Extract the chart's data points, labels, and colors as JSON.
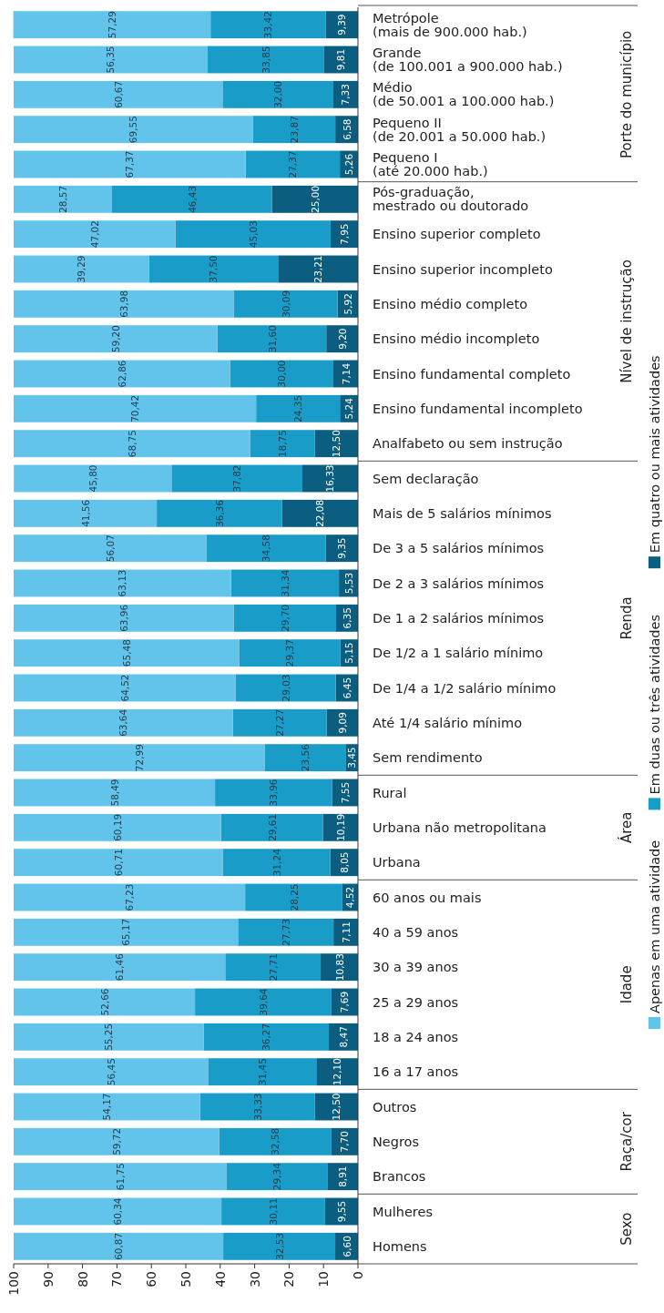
{
  "chart_data": {
    "type": "bar",
    "orientation": "horizontal",
    "stacked": true,
    "categories": [
      "Metrópole\n(mais de 900.000 hab.)",
      "Grande\n(de 100.001 a 900.000 hab.)",
      "Médio\n(de 50.001 a 100.000 hab.)",
      "Pequeno II\n(de 20.001 a 50.000 hab.)",
      "Pequeno I\n(até 20.000 hab.)",
      "Pós-graduação,\nmestrado ou doutorado",
      "Ensino superior completo",
      "Ensino superior incompleto",
      "Ensino médio completo",
      "Ensino médio incompleto",
      "Ensino fundamental completo",
      "Ensino fundamental incompleto",
      "Analfabeto ou sem instrução",
      "Sem declaração",
      "Mais de 5 salários mínimos",
      "De 3 a 5 salários mínimos",
      "De 2 a 3 salários mínimos",
      "De 1 a 2 salários mínimos",
      "De 1/2 a 1 salário mínimo",
      "De 1/4 a 1/2 salário mínimo",
      "Até 1/4 salário mínimo",
      "Sem rendimento",
      "Rural",
      "Urbana não metropolitana",
      "Urbana",
      "60 anos ou mais",
      "40 a 59 anos",
      "30 a 39 anos",
      "25 a 29 anos",
      "18 a 24 anos",
      "16 a 17 anos",
      "Outros",
      "Negros",
      "Brancos",
      "Mulheres",
      "Homens"
    ],
    "series": [
      {
        "name": "Em quatro ou mais atividades",
        "color": "#0b5e80",
        "values": [
          9.39,
          9.81,
          7.33,
          6.58,
          5.26,
          25.0,
          7.95,
          23.21,
          5.92,
          9.2,
          7.14,
          5.24,
          12.5,
          16.33,
          22.08,
          9.35,
          5.53,
          6.35,
          5.15,
          6.45,
          9.09,
          3.45,
          7.55,
          10.19,
          8.05,
          4.52,
          7.11,
          10.83,
          7.69,
          8.47,
          12.1,
          12.5,
          7.7,
          8.91,
          9.55,
          6.6
        ],
        "value_labels": [
          "9,39",
          "9,81",
          "7,33",
          "6,58",
          "5,26",
          "25,00",
          "7,95",
          "23,21",
          "5,92",
          "9,20",
          "7,14",
          "5,24",
          "12,50",
          "16,33",
          "22,08",
          "9,35",
          "5,53",
          "6,35",
          "5,15",
          "6,45",
          "9,09",
          "3,45",
          "7,55",
          "10,19",
          "8,05",
          "4,52",
          "7,11",
          "10,83",
          "7,69",
          "8,47",
          "12,10",
          "12,50",
          "7,70",
          "8,91",
          "9,55",
          "6,60"
        ]
      },
      {
        "name": "Em duas ou três atividades",
        "color": "#1a9cc8",
        "values": [
          33.42,
          33.85,
          32.0,
          23.87,
          27.37,
          46.43,
          45.03,
          37.5,
          30.09,
          31.6,
          30.0,
          24.35,
          18.75,
          37.82,
          36.36,
          34.58,
          31.34,
          29.7,
          29.37,
          29.03,
          27.27,
          23.56,
          33.96,
          29.61,
          31.24,
          28.25,
          27.73,
          27.71,
          39.64,
          36.27,
          31.45,
          33.33,
          32.58,
          29.34,
          30.11,
          32.53
        ],
        "value_labels": [
          "33,42",
          "33,85",
          "32,00",
          "23,87",
          "27,37",
          "46,43",
          "45,03",
          "37,50",
          "30,09",
          "31,60",
          "30,00",
          "24,35",
          "18,75",
          "37,82",
          "36,36",
          "34,58",
          "31,34",
          "29,70",
          "29,37",
          "29,03",
          "27,27",
          "23,56",
          "33,96",
          "29,61",
          "31,24",
          "28,25",
          "27,73",
          "27,71",
          "39,64",
          "36,27",
          "31,45",
          "33,33",
          "32,58",
          "29,34",
          "30,11",
          "32,53"
        ]
      },
      {
        "name": "Apenas em uma atividade",
        "color": "#63c4eb",
        "values": [
          57.29,
          56.35,
          60.67,
          69.55,
          67.37,
          28.57,
          47.02,
          39.29,
          63.98,
          59.2,
          62.86,
          70.42,
          68.75,
          45.8,
          41.56,
          56.07,
          63.13,
          63.96,
          65.48,
          64.52,
          63.64,
          72.99,
          58.49,
          60.19,
          60.71,
          67.23,
          65.17,
          61.46,
          52.66,
          55.25,
          56.45,
          54.17,
          59.72,
          61.75,
          60.34,
          60.87
        ],
        "value_labels": [
          "57,29",
          "56,35",
          "60,67",
          "69,55",
          "67,37",
          "28,57",
          "47,02",
          "39,29",
          "63,98",
          "59,20",
          "62,86",
          "70,42",
          "68,75",
          "45,80",
          "41,56",
          "56,07",
          "63,13",
          "63,96",
          "65,48",
          "64,52",
          "63,64",
          "72,99",
          "58,49",
          "60,19",
          "60,71",
          "67,23",
          "65,17",
          "61,46",
          "52,66",
          "55,25",
          "56,45",
          "54,17",
          "59,72",
          "61,75",
          "60,34",
          "60,87"
        ]
      }
    ],
    "xlim": [
      100,
      0
    ],
    "xticks": [
      100,
      90,
      80,
      70,
      60,
      50,
      40,
      30,
      20,
      10,
      0
    ],
    "annotations": [
      "Porte do município",
      "Nível de instrução",
      "Renda",
      "Área",
      "Idade",
      "Raça/cor",
      "Sexo"
    ],
    "legend": "right"
  }
}
